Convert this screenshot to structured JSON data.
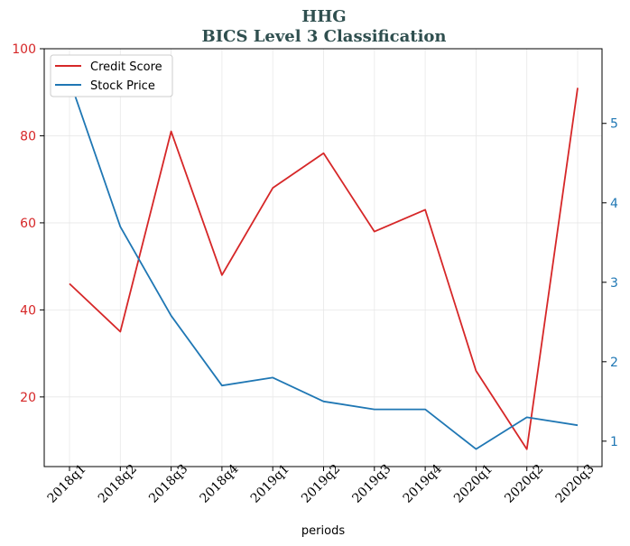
{
  "chart_data": {
    "type": "line",
    "title": "HHG",
    "subtitle": "BICS Level 3 Classification",
    "xlabel": "periods",
    "categories": [
      "2018q1",
      "2018q2",
      "2018q3",
      "2018q4",
      "2019q1",
      "2019q2",
      "2019q3",
      "2019q4",
      "2020q1",
      "2020q2",
      "2020q3"
    ],
    "series": [
      {
        "name": "Credit Score",
        "axis": "left",
        "color": "#d62728",
        "values": [
          46,
          35,
          81,
          48,
          68,
          76,
          58,
          63,
          26,
          8,
          91
        ]
      },
      {
        "name": "Stock Price",
        "axis": "right",
        "color": "#1f77b4",
        "values": [
          5.55,
          3.7,
          2.58,
          1.7,
          1.8,
          1.5,
          1.4,
          1.4,
          0.9,
          1.3,
          1.2
        ]
      }
    ],
    "y_left": {
      "ylim": [
        4,
        100
      ],
      "ticks": [
        20,
        40,
        60,
        80,
        100
      ],
      "color": "#d62728"
    },
    "y_right": {
      "ylim": [
        0.68,
        5.94
      ],
      "ticks": [
        1,
        2,
        3,
        4,
        5
      ],
      "color": "#1f77b4"
    },
    "grid": true,
    "legend": "top-left"
  }
}
